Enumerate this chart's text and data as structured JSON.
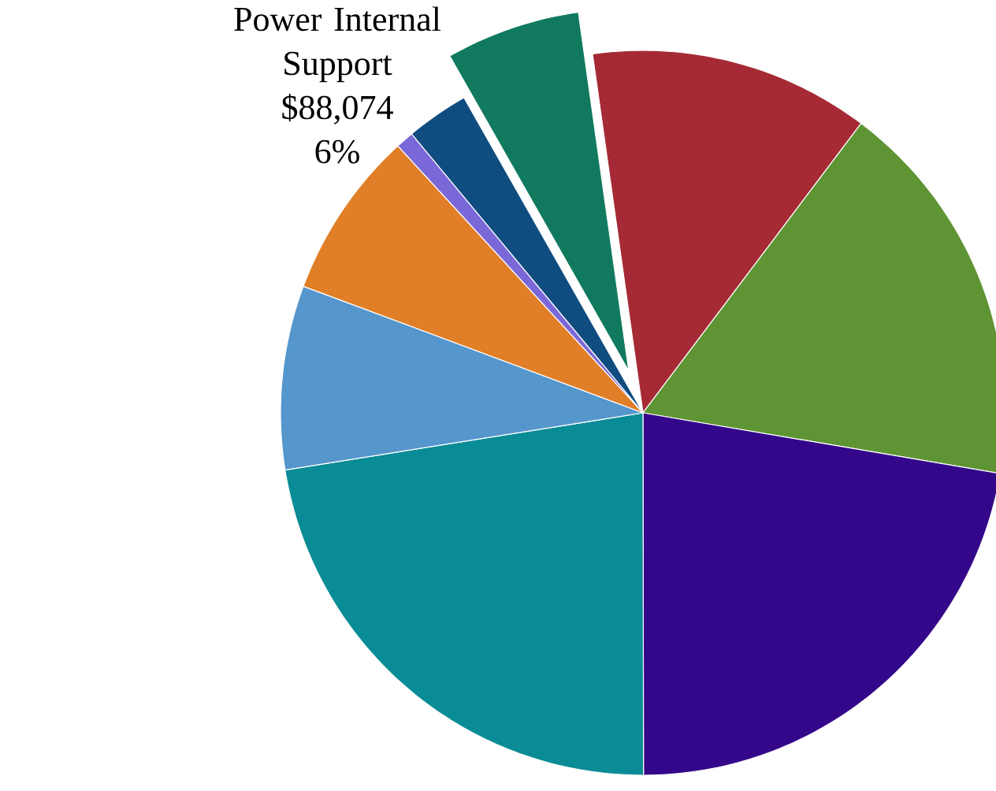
{
  "chart_data": {
    "type": "pie",
    "categories": [
      null,
      null,
      null,
      null,
      null,
      null,
      null,
      null,
      "Power Internal Support"
    ],
    "values": [
      12.5,
      17.4,
      22.3,
      22.5,
      8.2,
      7.5,
      0.8,
      2.8,
      6
    ],
    "colors": [
      "#a52a35",
      "#5e9433",
      "#34078a",
      "#0a8c96",
      "#5596cc",
      "#e07f27",
      "#7b68d8",
      "#0f4c80",
      "#117a5e"
    ],
    "annotations": [
      "$88,074",
      "6%"
    ]
  }
}
